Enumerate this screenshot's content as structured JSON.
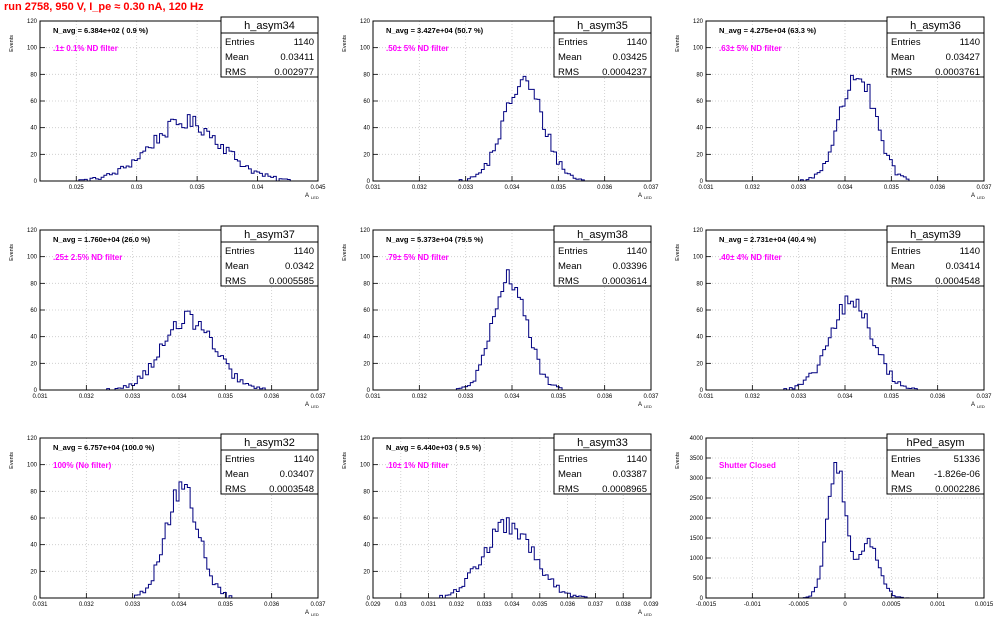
{
  "run_title": "run 2758,   950 V, I_pe ≈ 0.30 nA, 120 Hz",
  "colors": {
    "title": "#ff0000",
    "note": "#ff00ff",
    "hist": "#000080",
    "grid": "#c8c8c8"
  },
  "chart_data": [
    {
      "type": "histogram",
      "name": "h_asym34",
      "entries": "1140",
      "mean": "0.03411",
      "rms": "0.002977",
      "navg": "N_avg = 6.384e+02 ( 0.9 %)",
      "note": ".1± 0.1% ND filter",
      "xlabel": "A_LED",
      "ylabel": "Events",
      "xlim": [
        0.022,
        0.045
      ],
      "ylim": [
        0,
        120
      ],
      "xticks": [
        0.025,
        0.03,
        0.035,
        0.04,
        0.045
      ],
      "xtick_labels": [
        "0.025",
        "0.03",
        "0.035",
        "0.04",
        "0.045"
      ],
      "yticks": [
        0,
        20,
        40,
        60,
        80,
        100,
        120
      ],
      "ytick_labels": [
        "0",
        "20",
        "40",
        "60",
        "80",
        "100",
        "120"
      ],
      "mean_value": 0.03411,
      "sigma": 0.002977,
      "peak": 44,
      "entries_n": 1140,
      "grid": true
    },
    {
      "type": "histogram",
      "name": "h_asym35",
      "entries": "1140",
      "mean": "0.03425",
      "rms": "0.0004237",
      "navg": "N_avg = 3.427e+04 (50.7 %)",
      "note": ".50± 5% ND filter",
      "xlabel": "A_LED",
      "ylabel": "Events",
      "xlim": [
        0.031,
        0.037
      ],
      "xticks": [
        0.031,
        0.032,
        0.033,
        0.034,
        0.035,
        0.036,
        0.037
      ],
      "xtick_labels": [
        "0.031",
        "0.032",
        "0.033",
        "0.034",
        "0.035",
        "0.036",
        "0.037"
      ],
      "ylim": [
        0,
        120
      ],
      "yticks": [
        0,
        20,
        40,
        60,
        80,
        100,
        120
      ],
      "ytick_labels": [
        "0",
        "20",
        "40",
        "60",
        "80",
        "100",
        "120"
      ],
      "mean_value": 0.03425,
      "sigma": 0.0004237,
      "peak": 74,
      "entries_n": 1140,
      "grid": true
    },
    {
      "type": "histogram",
      "name": "h_asym36",
      "entries": "1140",
      "mean": "0.03427",
      "rms": "0.0003761",
      "navg": "N_avg = 4.275e+04 (63.3 %)",
      "note": ".63± 5% ND filter",
      "xlabel": "A_LED",
      "ylabel": "Events",
      "xlim": [
        0.031,
        0.037
      ],
      "xticks": [
        0.031,
        0.032,
        0.033,
        0.034,
        0.035,
        0.036,
        0.037
      ],
      "xtick_labels": [
        "0.031",
        "0.032",
        "0.033",
        "0.034",
        "0.035",
        "0.036",
        "0.037"
      ],
      "ylim": [
        0,
        120
      ],
      "yticks": [
        0,
        20,
        40,
        60,
        80,
        100,
        120
      ],
      "ytick_labels": [
        "0",
        "20",
        "40",
        "60",
        "80",
        "100",
        "120"
      ],
      "mean_value": 0.03427,
      "sigma": 0.0003761,
      "peak": 80,
      "entries_n": 1140,
      "grid": true
    },
    {
      "type": "histogram",
      "name": "h_asym37",
      "entries": "1140",
      "mean": "0.0342",
      "rms": "0.0005585",
      "navg": "N_avg = 1.760e+04 (26.0 %)",
      "note": ".25± 2.5% ND filter",
      "xlabel": "A_LED",
      "ylabel": "Events",
      "xlim": [
        0.031,
        0.037
      ],
      "xticks": [
        0.031,
        0.032,
        0.033,
        0.034,
        0.035,
        0.036,
        0.037
      ],
      "xtick_labels": [
        "0.031",
        "0.032",
        "0.033",
        "0.034",
        "0.035",
        "0.036",
        "0.037"
      ],
      "ylim": [
        0,
        120
      ],
      "yticks": [
        0,
        20,
        40,
        60,
        80,
        100,
        120
      ],
      "ytick_labels": [
        "0",
        "20",
        "40",
        "60",
        "80",
        "100",
        "120"
      ],
      "mean_value": 0.0342,
      "sigma": 0.0005585,
      "peak": 53,
      "entries_n": 1140,
      "grid": true
    },
    {
      "type": "histogram",
      "name": "h_asym38",
      "entries": "1140",
      "mean": "0.03396",
      "rms": "0.0003614",
      "navg": "N_avg = 5.373e+04 (79.5 %)",
      "note": ".79± 5% ND filter",
      "xlabel": "A_LED",
      "ylabel": "Events",
      "xlim": [
        0.031,
        0.037
      ],
      "xticks": [
        0.031,
        0.032,
        0.033,
        0.034,
        0.035,
        0.036,
        0.037
      ],
      "xtick_labels": [
        "0.031",
        "0.032",
        "0.033",
        "0.034",
        "0.035",
        "0.036",
        "0.037"
      ],
      "ylim": [
        0,
        120
      ],
      "yticks": [
        0,
        20,
        40,
        60,
        80,
        100,
        120
      ],
      "ytick_labels": [
        "0",
        "20",
        "40",
        "60",
        "80",
        "100",
        "120"
      ],
      "mean_value": 0.03396,
      "sigma": 0.0003614,
      "peak": 84,
      "entries_n": 1140,
      "grid": true
    },
    {
      "type": "histogram",
      "name": "h_asym39",
      "entries": "1140",
      "mean": "0.03414",
      "rms": "0.0004548",
      "navg": "N_avg = 2.731e+04 (40.4 %)",
      "note": ".40± 4% ND filter",
      "xlabel": "A_LED",
      "ylabel": "Events",
      "xlim": [
        0.031,
        0.037
      ],
      "xticks": [
        0.031,
        0.032,
        0.033,
        0.034,
        0.035,
        0.036,
        0.037
      ],
      "xtick_labels": [
        "0.031",
        "0.032",
        "0.033",
        "0.034",
        "0.035",
        "0.036",
        "0.037"
      ],
      "ylim": [
        0,
        120
      ],
      "yticks": [
        0,
        20,
        40,
        60,
        80,
        100,
        120
      ],
      "ytick_labels": [
        "0",
        "20",
        "40",
        "60",
        "80",
        "100",
        "120"
      ],
      "mean_value": 0.03414,
      "sigma": 0.0004548,
      "peak": 66,
      "entries_n": 1140,
      "grid": true
    },
    {
      "type": "histogram",
      "name": "h_asym32",
      "entries": "1140",
      "mean": "0.03407",
      "rms": "0.0003548",
      "navg": "N_avg = 6.757e+04 (100.0 %)",
      "note": "100% (No filter)",
      "xlabel": "A_LED",
      "ylabel": "Events",
      "xlim": [
        0.031,
        0.037
      ],
      "xticks": [
        0.031,
        0.032,
        0.033,
        0.034,
        0.035,
        0.036,
        0.037
      ],
      "xtick_labels": [
        "0.031",
        "0.032",
        "0.033",
        "0.034",
        "0.035",
        "0.036",
        "0.037"
      ],
      "ylim": [
        0,
        120
      ],
      "yticks": [
        0,
        20,
        40,
        60,
        80,
        100,
        120
      ],
      "ytick_labels": [
        "0",
        "20",
        "40",
        "60",
        "80",
        "100",
        "120"
      ],
      "mean_value": 0.03407,
      "sigma": 0.0003548,
      "peak": 82,
      "entries_n": 1140,
      "grid": true
    },
    {
      "type": "histogram",
      "name": "h_asym33",
      "entries": "1140",
      "mean": "0.03387",
      "rms": "0.0008965",
      "navg": "N_avg = 6.440e+03 ( 9.5 %)",
      "note": ".10± 1% ND filter",
      "xlabel": "A_LED",
      "ylabel": "Events",
      "xlim": [
        0.029,
        0.039
      ],
      "xticks": [
        0.029,
        0.03,
        0.031,
        0.032,
        0.033,
        0.034,
        0.035,
        0.036,
        0.037,
        0.038,
        0.039
      ],
      "xtick_labels": [
        "0.029",
        "0.03",
        "0.031",
        "0.032",
        "0.033",
        "0.034",
        "0.035",
        "0.036",
        "0.037",
        "0.038",
        "0.039"
      ],
      "ylim": [
        0,
        120
      ],
      "yticks": [
        0,
        20,
        40,
        60,
        80,
        100,
        120
      ],
      "ytick_labels": [
        "0",
        "20",
        "40",
        "60",
        "80",
        "100",
        "120"
      ],
      "mean_value": 0.03387,
      "sigma": 0.0008965,
      "peak": 54,
      "entries_n": 1140,
      "grid": true
    },
    {
      "type": "histogram",
      "name": "hPed_asym",
      "entries": "51336",
      "mean": "-1.826e-06",
      "rms": "0.0002286",
      "navg": "",
      "note": "Shutter Closed",
      "xlabel": "",
      "ylabel": "Events",
      "xlim": [
        -0.0015,
        0.0015
      ],
      "xticks": [
        -0.0015,
        -0.001,
        -0.0005,
        0,
        0.0005,
        0.001,
        0.0015
      ],
      "xtick_labels": [
        "-0.0015",
        "-0.001",
        "-0.0005",
        "0",
        "0.0005",
        "0.001",
        "0.0015"
      ],
      "ylim": [
        0,
        4000
      ],
      "yticks": [
        0,
        500,
        1000,
        1500,
        2000,
        2500,
        3000,
        3500,
        4000
      ],
      "ytick_labels": [
        "0",
        "500",
        "1000",
        "1500",
        "2000",
        "2500",
        "3000",
        "3500",
        "4000"
      ],
      "grid": true,
      "components": [
        {
          "mean_value": -9e-05,
          "sigma": 0.0001,
          "peak": 3300
        },
        {
          "mean_value": 0.00026,
          "sigma": 0.00011,
          "peak": 1400
        }
      ]
    }
  ]
}
